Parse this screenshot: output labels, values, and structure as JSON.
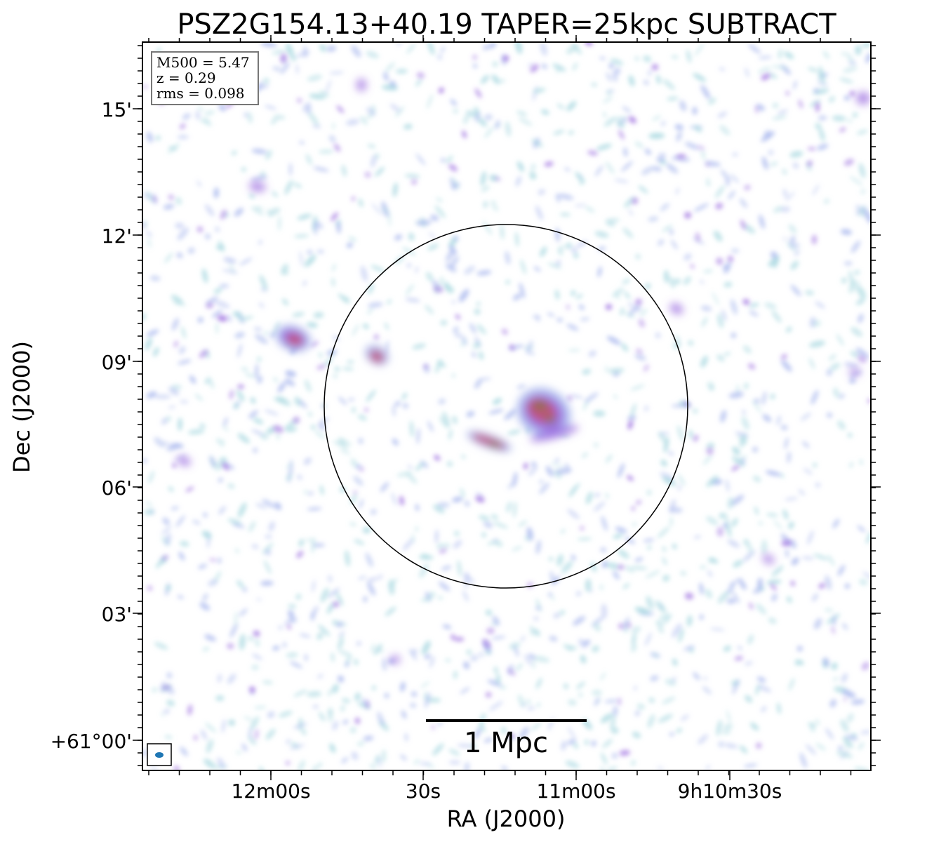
{
  "title": "PSZ2G154.13+40.19 TAPER=25kpc SUBTRACT",
  "info_box": {
    "lines": [
      "M500 = 5.47",
      "z = 0.29",
      "rms = 0.098"
    ]
  },
  "axes": {
    "xlabel": "RA (J2000)",
    "ylabel": "Dec (J2000)",
    "x_ticks": [
      {
        "label": "12m00s"
      },
      {
        "label": "30s"
      },
      {
        "label": "11m00s"
      },
      {
        "label": "9h10m30s"
      }
    ],
    "y_ticks": [
      {
        "label": "15'"
      },
      {
        "label": "12'"
      },
      {
        "label": "09'"
      },
      {
        "label": "06'"
      },
      {
        "label": "03'"
      },
      {
        "label": "+61°00'"
      }
    ]
  },
  "scale_bar": {
    "label": "1 Mpc"
  },
  "colors": {
    "faint": "#a8d8e0",
    "low": "#a9b8ee",
    "mid": "#9c6ee0",
    "high": "#c0507a",
    "peak": "#7a7a2a",
    "beam": "#1f77b4",
    "circle": "#000000"
  }
}
